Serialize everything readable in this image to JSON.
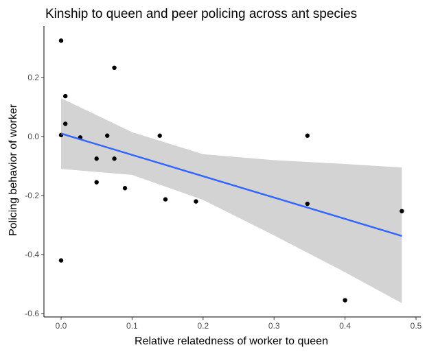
{
  "chart_data": {
    "type": "scatter",
    "title": "Kinship to queen and peer policing across ant species",
    "xlabel": "Relative relatedness of worker to queen",
    "ylabel": "Policing behavior of worker",
    "xlim": [
      0,
      0.5
    ],
    "ylim": [
      -0.6,
      0.3
    ],
    "x_ticks": [
      "0.0",
      "0.1",
      "0.2",
      "0.3",
      "0.4",
      "0.5"
    ],
    "y_ticks": [
      "0.2",
      "0.0",
      "-0.2",
      "-0.4",
      "-0.6"
    ],
    "grid": false,
    "points": [
      {
        "x": 0.0,
        "y": 0.325
      },
      {
        "x": 0.006,
        "y": 0.137
      },
      {
        "x": 0.075,
        "y": 0.233
      },
      {
        "x": 0.0,
        "y": 0.005
      },
      {
        "x": 0.006,
        "y": 0.043
      },
      {
        "x": 0.027,
        "y": -0.003
      },
      {
        "x": 0.065,
        "y": 0.003
      },
      {
        "x": 0.139,
        "y": 0.003
      },
      {
        "x": 0.05,
        "y": -0.075
      },
      {
        "x": 0.075,
        "y": -0.075
      },
      {
        "x": 0.05,
        "y": -0.155
      },
      {
        "x": 0.09,
        "y": -0.175
      },
      {
        "x": 0.147,
        "y": -0.213
      },
      {
        "x": 0.19,
        "y": -0.22
      },
      {
        "x": 0.347,
        "y": 0.003
      },
      {
        "x": 0.347,
        "y": -0.228
      },
      {
        "x": 0.0,
        "y": -0.42
      },
      {
        "x": 0.4,
        "y": -0.555
      },
      {
        "x": 0.48,
        "y": -0.253
      }
    ],
    "trend_line": {
      "x": [
        0.0,
        0.48
      ],
      "y": [
        0.01,
        -0.337
      ],
      "color": "#3366ff"
    },
    "confidence_band": {
      "x": [
        0.0,
        0.1,
        0.2,
        0.3,
        0.4,
        0.48
      ],
      "upper": [
        0.13,
        0.015,
        -0.06,
        -0.08,
        -0.093,
        -0.105
      ],
      "lower": [
        -0.11,
        -0.13,
        -0.215,
        -0.335,
        -0.46,
        -0.565
      ],
      "color": "#d3d3d3"
    },
    "point_color": "#000000"
  }
}
